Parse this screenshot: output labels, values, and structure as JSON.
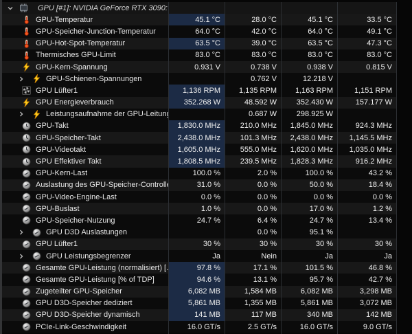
{
  "window": {
    "group_header": {
      "label": "GPU [#1]: NVIDIA GeForce RTX 3090:",
      "icon": "gpu-chip",
      "state": "expanded"
    }
  },
  "colors": {
    "highlight_cell": "#1c2b45",
    "stripe_light": "#181818",
    "stripe_dark": "#0b0b0b",
    "bolt_yellow": "#ffd21e",
    "thermometer_red": "#e8491f",
    "separator": "#2c2f33"
  },
  "table": {
    "rows": [
      {
        "name": "GPU-Temperatur",
        "icon": "thermometer",
        "expandable": false,
        "shade": "l",
        "hl": true,
        "values": [
          "45.1 °C",
          "28.0 °C",
          "45.1 °C",
          "33.5 °C"
        ]
      },
      {
        "name": "GPU-Speicher-Junction-Temperatur",
        "icon": "thermometer",
        "expandable": false,
        "shade": "d",
        "hl": false,
        "values": [
          "64.0 °C",
          "42.0 °C",
          "64.0 °C",
          "49.1 °C"
        ]
      },
      {
        "name": "GPU-Hot-Spot-Temperatur",
        "icon": "thermometer",
        "expandable": false,
        "shade": "l",
        "hl": true,
        "values": [
          "63.5 °C",
          "39.0 °C",
          "63.5 °C",
          "47.3 °C"
        ]
      },
      {
        "name": "Thermisches GPU-Limit",
        "icon": "thermometer",
        "expandable": false,
        "shade": "d",
        "hl": false,
        "values": [
          "83.0 °C",
          "83.0 °C",
          "83.0 °C",
          "83.0 °C"
        ]
      },
      {
        "name": "GPU-Kern-Spannung",
        "icon": "bolt",
        "expandable": false,
        "shade": "l",
        "hl": false,
        "values": [
          "0.931 V",
          "0.738 V",
          "0.938 V",
          "0.815 V"
        ]
      },
      {
        "name": "GPU-Schienen-Spannungen",
        "icon": "bolt",
        "expandable": true,
        "shade": "d",
        "hl": false,
        "values": [
          "",
          "0.762 V",
          "12.218 V",
          ""
        ]
      },
      {
        "name": "GPU Lüfter1",
        "icon": "fan",
        "expandable": false,
        "shade": "d",
        "hl": true,
        "values": [
          "1,136 RPM",
          "1,135 RPM",
          "1,163 RPM",
          "1,151 RPM"
        ]
      },
      {
        "name": "GPU Energieverbrauch",
        "icon": "bolt",
        "expandable": false,
        "shade": "l",
        "hl": true,
        "values": [
          "352.268 W",
          "48.592 W",
          "352.430 W",
          "157.177 W"
        ]
      },
      {
        "name": "Leistungsaufnahme der GPU-Leitungen",
        "icon": "bolt",
        "expandable": true,
        "shade": "d",
        "hl": false,
        "values": [
          "",
          "0.687 W",
          "298.925 W",
          ""
        ]
      },
      {
        "name": "GPU-Takt",
        "icon": "clock",
        "expandable": false,
        "shade": "d",
        "hl": true,
        "values": [
          "1,830.0 MHz",
          "210.0 MHz",
          "1,845.0 MHz",
          "924.3 MHz"
        ]
      },
      {
        "name": "GPU-Speicher-Takt",
        "icon": "clock",
        "expandable": false,
        "shade": "l",
        "hl": true,
        "values": [
          "2,438.0 MHz",
          "101.3 MHz",
          "2,438.0 MHz",
          "1,145.5 MHz"
        ]
      },
      {
        "name": "GPU-Videotakt",
        "icon": "clock",
        "expandable": false,
        "shade": "d",
        "hl": true,
        "values": [
          "1,605.0 MHz",
          "555.0 MHz",
          "1,620.0 MHz",
          "1,035.0 MHz"
        ]
      },
      {
        "name": "GPU Effektiver Takt",
        "icon": "clock",
        "expandable": false,
        "shade": "l",
        "hl": true,
        "values": [
          "1,808.5 MHz",
          "239.5 MHz",
          "1,828.3 MHz",
          "916.2 MHz"
        ]
      },
      {
        "name": "GPU-Kern-Last",
        "icon": "gauge",
        "expandable": false,
        "shade": "d",
        "hl": false,
        "values": [
          "100.0 %",
          "2.0 %",
          "100.0 %",
          "43.2 %"
        ]
      },
      {
        "name": "Auslastung des GPU-Speicher-Controllers",
        "icon": "gauge",
        "expandable": false,
        "shade": "l",
        "hl": false,
        "values": [
          "31.0 %",
          "0.0 %",
          "50.0 %",
          "18.4 %"
        ]
      },
      {
        "name": "GPU-Video-Engine-Last",
        "icon": "gauge",
        "expandable": false,
        "shade": "d",
        "hl": false,
        "values": [
          "0.0 %",
          "0.0 %",
          "0.0 %",
          "0.0 %"
        ]
      },
      {
        "name": "GPU-Buslast",
        "icon": "gauge",
        "expandable": false,
        "shade": "l",
        "hl": false,
        "values": [
          "1.0 %",
          "0.0 %",
          "17.0 %",
          "1.2 %"
        ]
      },
      {
        "name": "GPU-Speicher-Nutzung",
        "icon": "gauge",
        "expandable": false,
        "shade": "d",
        "hl": false,
        "values": [
          "24.7 %",
          "6.4 %",
          "24.7 %",
          "13.4 %"
        ]
      },
      {
        "name": "GPU D3D Auslastungen",
        "icon": "gauge",
        "expandable": true,
        "shade": "d",
        "hl": false,
        "values": [
          "",
          "0.0 %",
          "95.1 %",
          ""
        ]
      },
      {
        "name": "GPU Lüfter1",
        "icon": "gauge",
        "expandable": false,
        "shade": "l",
        "hl": false,
        "values": [
          "30 %",
          "30 %",
          "30 %",
          "30 %"
        ]
      },
      {
        "name": "GPU Leistungsbegrenzer",
        "icon": "gauge",
        "expandable": true,
        "shade": "d",
        "hl": false,
        "values": [
          "Ja",
          "Nein",
          "Ja",
          "Ja"
        ]
      },
      {
        "name": "Gesamte GPU-Leistung (normalisiert) […",
        "icon": "gauge",
        "expandable": false,
        "shade": "l",
        "hl": true,
        "values": [
          "97.8 %",
          "17.1 %",
          "101.5 %",
          "46.8 %"
        ]
      },
      {
        "name": "Gesamte GPU-Leistung [% of TDP]",
        "icon": "gauge",
        "expandable": false,
        "shade": "d",
        "hl": true,
        "values": [
          "94.6 %",
          "13.1 %",
          "95.7 %",
          "42.7 %"
        ]
      },
      {
        "name": "Zugeteilter GPU-Speicher",
        "icon": "gauge",
        "expandable": false,
        "shade": "l",
        "hl": true,
        "values": [
          "6,082 MB",
          "1,584 MB",
          "6,082 MB",
          "3,298 MB"
        ]
      },
      {
        "name": "GPU D3D-Speicher dediziert",
        "icon": "gauge",
        "expandable": false,
        "shade": "d",
        "hl": true,
        "values": [
          "5,861 MB",
          "1,355 MB",
          "5,861 MB",
          "3,072 MB"
        ]
      },
      {
        "name": "GPU D3D-Speicher dynamisch",
        "icon": "gauge",
        "expandable": false,
        "shade": "l",
        "hl": true,
        "values": [
          "141 MB",
          "117 MB",
          "340 MB",
          "142 MB"
        ]
      },
      {
        "name": "PCIe-Link-Geschwindigkeit",
        "icon": "gauge",
        "expandable": false,
        "shade": "d",
        "hl": false,
        "values": [
          "16.0 GT/s",
          "2.5 GT/s",
          "16.0 GT/s",
          "9.0 GT/s"
        ]
      }
    ]
  }
}
